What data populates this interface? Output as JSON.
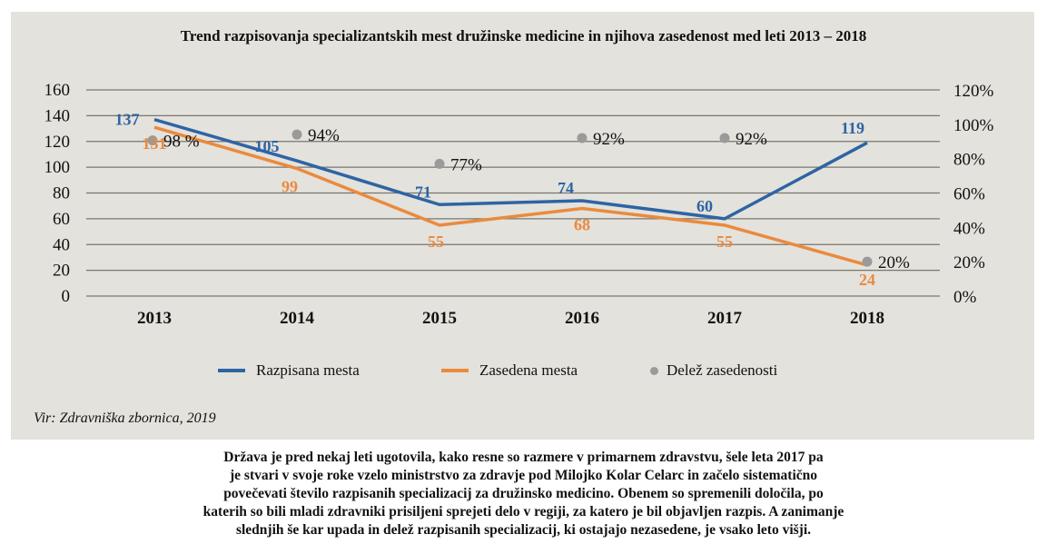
{
  "chart_data": {
    "type": "line",
    "title": "Trend razpisovanja specializantskih mest družinske medicine in njihova zasedenost med leti 2013 – 2018",
    "categories": [
      "2013",
      "2014",
      "2015",
      "2016",
      "2017",
      "2018"
    ],
    "series": [
      {
        "name": "Razpisana mesta",
        "type": "line",
        "axis": "left",
        "color": "#2e64a4",
        "values": [
          137,
          105,
          71,
          74,
          60,
          119
        ]
      },
      {
        "name": "Zasedena mesta",
        "type": "line",
        "axis": "left",
        "color": "#ea8a3e",
        "values": [
          131,
          99,
          55,
          68,
          55,
          24
        ]
      },
      {
        "name": "Delež zasedenosti",
        "type": "scatter",
        "axis": "right",
        "color": "#9a9a9a",
        "values": [
          98,
          94,
          77,
          92,
          92,
          20
        ],
        "labels": [
          "98 %",
          "94%",
          "77%",
          "92%",
          "92%",
          "20%"
        ]
      }
    ],
    "ylim": [
      0,
      160
    ],
    "y_ticks": [
      "0",
      "20",
      "40",
      "60",
      "80",
      "100",
      "120",
      "140",
      "160"
    ],
    "y2lim": [
      0,
      120
    ],
    "y2_ticks": [
      "0%",
      "20%",
      "40%",
      "60%",
      "80%",
      "100%",
      "120%"
    ],
    "xlabel": "",
    "ylabel": "",
    "grid": true,
    "legend_position": "bottom"
  },
  "legend": [
    {
      "label": "Razpisana mesta",
      "kind": "line",
      "color": "#2e64a4"
    },
    {
      "label": "Zasedena mesta",
      "kind": "line",
      "color": "#ea8a3e"
    },
    {
      "label": "Delež zasedenosti",
      "kind": "dot",
      "color": "#9a9a9a"
    }
  ],
  "source": "Vir: Zdravniška zbornica, 2019",
  "caption_lines": [
    "Država je pred nekaj leti ugotovila, kako resne so razmere v primarnem zdravstvu, šele leta 2017 pa",
    "je stvari v svoje roke vzelo ministrstvo za zdravje pod Milojko Kolar Celarc in začelo sistematično",
    "povečevati število razpisanih specializacij za družinsko medicino. Obenem so spremenili določila, po",
    "katerih so bili mladi zdravniki prisiljeni sprejeti delo v regiji, za katero je bil objavljen razpis. A zanimanje",
    "slednjih še kar upada in delež razpisanih specializacij, ki ostajajo nezasedene, je vsako leto višji."
  ]
}
